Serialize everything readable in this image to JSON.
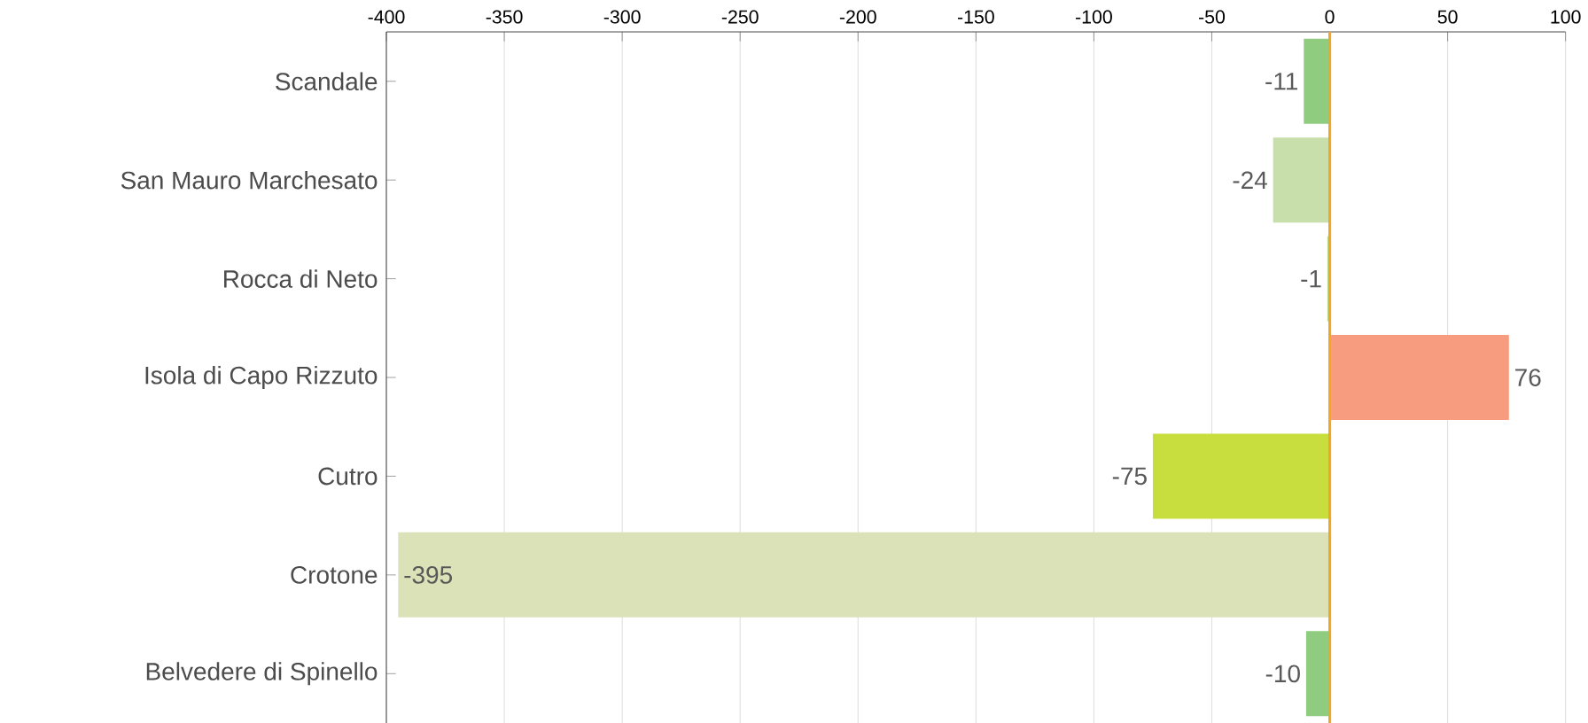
{
  "chart_data": {
    "type": "bar",
    "orientation": "horizontal",
    "categories": [
      "Scandale",
      "San Mauro Marchesato",
      "Rocca di Neto",
      "Isola di Capo Rizzuto",
      "Cutro",
      "Crotone",
      "Belvedere di Spinello"
    ],
    "values": [
      -11,
      -24,
      -1,
      76,
      -75,
      -395,
      -10
    ],
    "colors": [
      "#8fcc80",
      "#c8dfab",
      "#b9d98f",
      "#f89c80",
      "#c8dd3e",
      "#dce2b8",
      "#8fcc80"
    ],
    "xlim": [
      -400,
      100
    ],
    "xticks": [
      -400,
      -350,
      -300,
      -250,
      -200,
      -150,
      -100,
      -50,
      0,
      50,
      100
    ],
    "grid": "x",
    "data_labels": true,
    "ref_lines": [
      {
        "axis": "x",
        "value": 0,
        "color": "#f2a623"
      }
    ]
  }
}
